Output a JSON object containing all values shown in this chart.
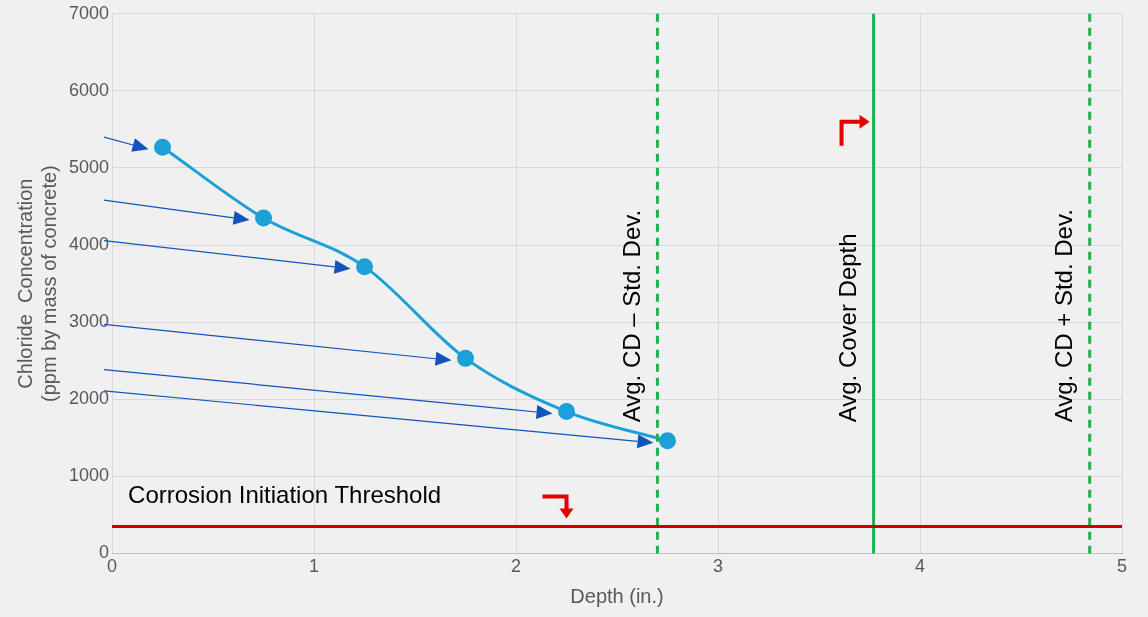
{
  "chart_data": {
    "type": "line",
    "xlabel": "Depth (in.)",
    "ylabel": "Chloride  Concentration\n(ppm by mass of concrete)",
    "x": [
      0.25,
      0.75,
      1.25,
      1.75,
      2.25,
      2.75
    ],
    "series": [
      {
        "color": "#1ba1d8",
        "values": [
          5270,
          4350,
          3720,
          2530,
          1840,
          1460
        ]
      }
    ],
    "xlim": [
      0,
      5
    ],
    "xticks": [
      0,
      1,
      2,
      3,
      4,
      5
    ],
    "ylim": [
      0,
      7000
    ],
    "yticks": [
      0,
      1000,
      2000,
      3000,
      4000,
      5000,
      6000,
      7000
    ],
    "grid": true,
    "legend": false,
    "marker": "circle",
    "line_style": "solid",
    "ref_lines": [
      {
        "axis": "x",
        "value": 2.7,
        "label": "Avg. CD – Std. Dev.",
        "color": "#22b04c",
        "line_style": "dashed"
      },
      {
        "axis": "x",
        "value": 3.77,
        "label": "Avg. Cover Depth",
        "color": "#22b04c",
        "line_style": "solid"
      },
      {
        "axis": "x",
        "value": 4.84,
        "label": "Avg. CD + Std. Dev.",
        "color": "#22b04c",
        "line_style": "dashed"
      },
      {
        "axis": "y",
        "value": 350,
        "label": "Corrosion Initiation Threshold",
        "color": "#cc0000",
        "line_style": "solid"
      }
    ]
  }
}
